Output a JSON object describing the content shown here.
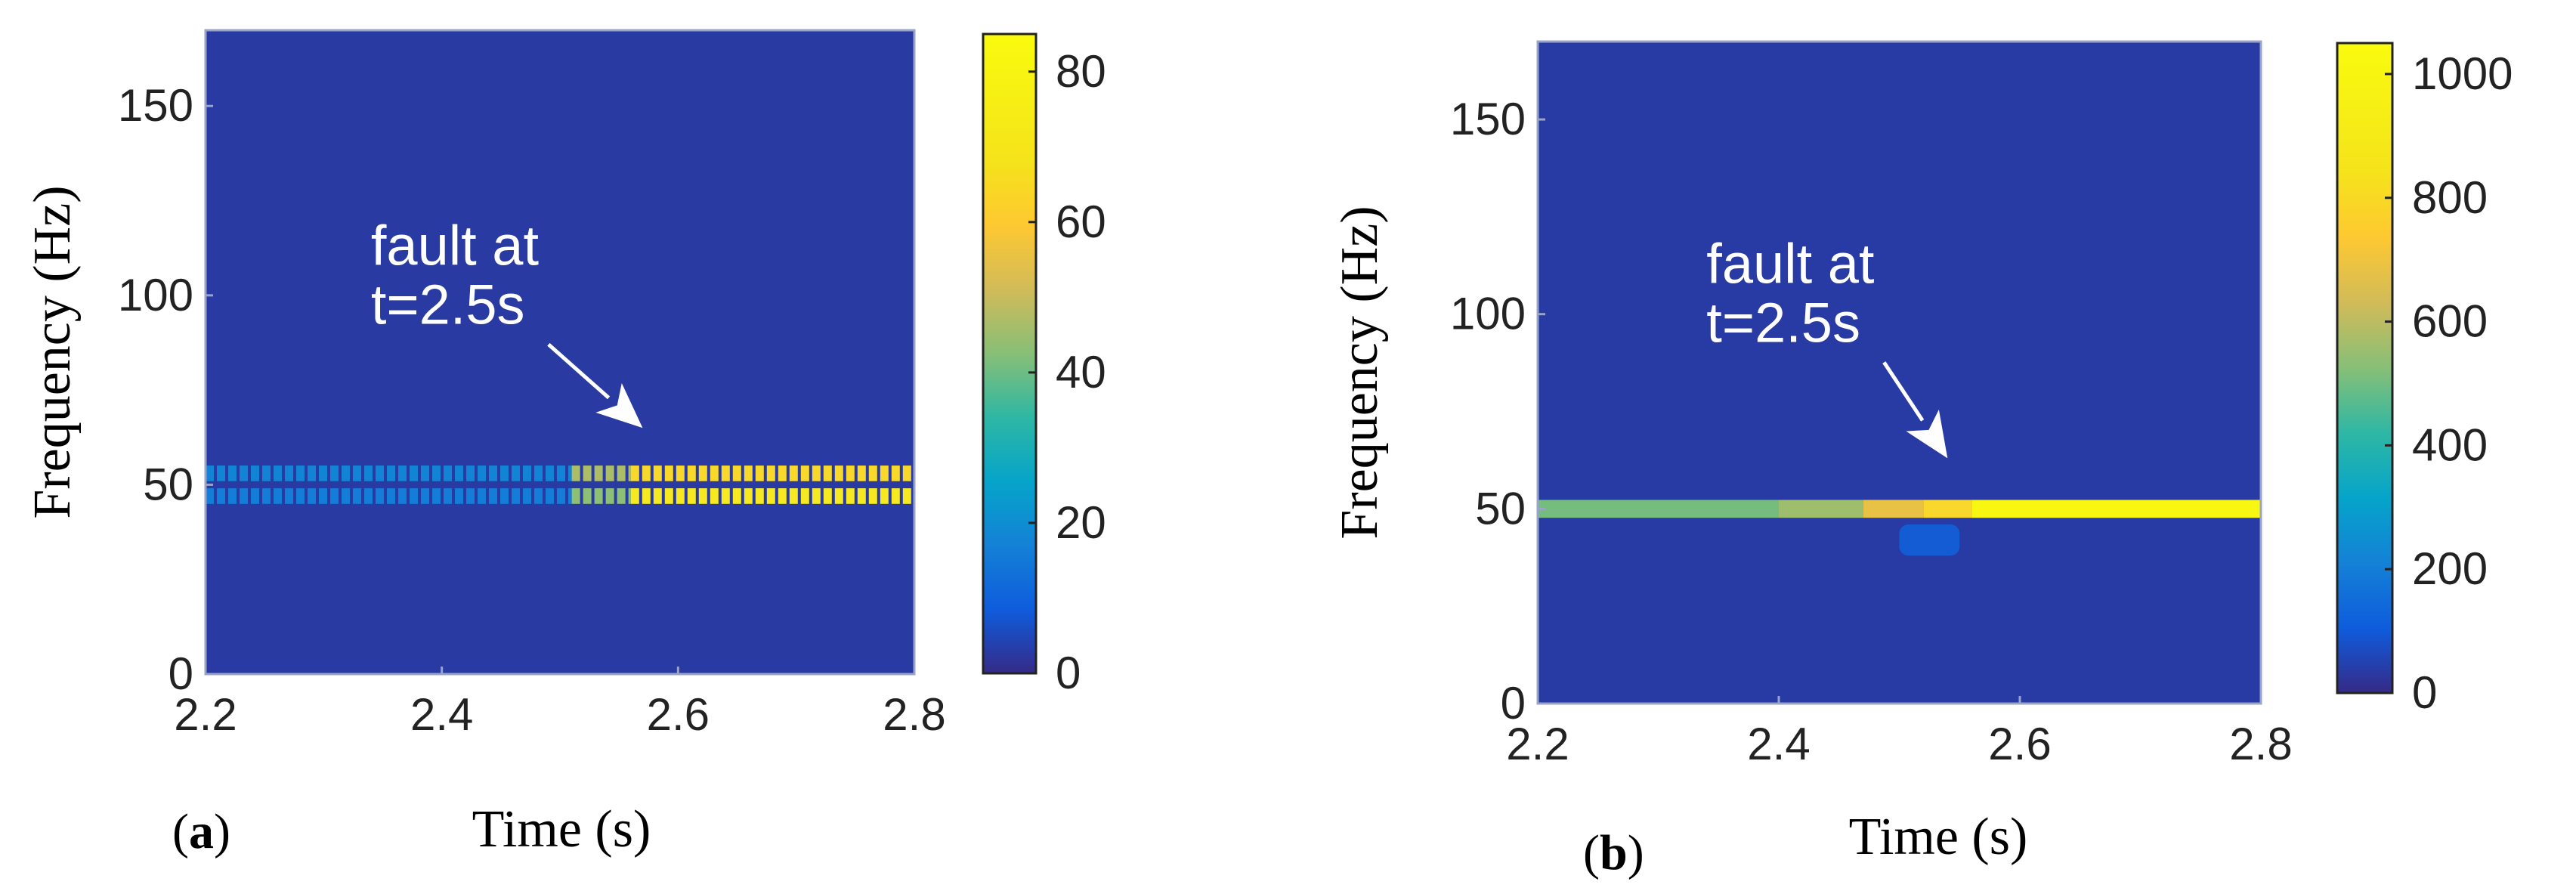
{
  "chart_data": [
    {
      "panel": "a",
      "panel_open": "(",
      "panel_letter": "a",
      "panel_close": ")",
      "type": "heatmap",
      "xlabel": "Time (s)",
      "ylabel": "Frequency (Hz)",
      "xlim": [
        2.2,
        2.8
      ],
      "ylim": [
        0,
        170
      ],
      "xticks": [
        2.2,
        2.4,
        2.6,
        2.8
      ],
      "xtick_labels": [
        "2.2",
        "2.4",
        "2.6",
        "2.8"
      ],
      "yticks": [
        0,
        50,
        100,
        150
      ],
      "ytick_labels": [
        "0",
        "50",
        "100",
        "150"
      ],
      "colorbar": {
        "min": 0,
        "max": 85,
        "ticks": [
          0,
          20,
          40,
          60,
          80
        ],
        "tick_labels": [
          "0",
          "20",
          "40",
          "60",
          "80"
        ],
        "colormap": "parula"
      },
      "background_value": 3,
      "bands": [
        {
          "t_start": 2.2,
          "t_end": 2.51,
          "freq": 53,
          "value": 20,
          "pattern": "dashed"
        },
        {
          "t_start": 2.2,
          "t_end": 2.51,
          "freq": 47,
          "value": 18,
          "pattern": "dashed"
        },
        {
          "t_start": 2.51,
          "t_end": 2.56,
          "freq": 53,
          "value": 52,
          "pattern": "dashed"
        },
        {
          "t_start": 2.51,
          "t_end": 2.56,
          "freq": 47,
          "value": 48,
          "pattern": "dashed"
        },
        {
          "t_start": 2.56,
          "t_end": 2.8,
          "freq": 53,
          "value": 72,
          "pattern": "dashed"
        },
        {
          "t_start": 2.56,
          "t_end": 2.8,
          "freq": 47,
          "value": 78,
          "pattern": "dashed"
        }
      ],
      "annotation": {
        "lines": [
          "fault at",
          "t=2.5s"
        ],
        "target_t": 2.57,
        "target_f": 65,
        "text_t": 2.34,
        "text_f": 108
      }
    },
    {
      "panel": "b",
      "panel_open": "(",
      "panel_letter": "b",
      "panel_close": ")",
      "type": "heatmap",
      "xlabel": "Time (s)",
      "ylabel": "Frequency (Hz)",
      "xlim": [
        2.2,
        2.8
      ],
      "ylim": [
        0,
        170
      ],
      "xticks": [
        2.2,
        2.4,
        2.6,
        2.8
      ],
      "xtick_labels": [
        "2.2",
        "2.4",
        "2.6",
        "2.8"
      ],
      "yticks": [
        0,
        50,
        100,
        150
      ],
      "ytick_labels": [
        "0",
        "50",
        "100",
        "150"
      ],
      "colorbar": {
        "min": 0,
        "max": 1050,
        "ticks": [
          0,
          200,
          400,
          600,
          800,
          1000
        ],
        "tick_labels": [
          "0",
          "200",
          "400",
          "600",
          "800",
          "1000"
        ],
        "colormap": "parula"
      },
      "background_value": 40,
      "bands": [
        {
          "t_start": 2.2,
          "t_end": 2.4,
          "freq": 50,
          "value": 560,
          "pattern": "solid"
        },
        {
          "t_start": 2.4,
          "t_end": 2.47,
          "freq": 50,
          "value": 620,
          "pattern": "solid"
        },
        {
          "t_start": 2.47,
          "t_end": 2.52,
          "freq": 50,
          "value": 760,
          "pattern": "solid"
        },
        {
          "t_start": 2.52,
          "t_end": 2.56,
          "freq": 50,
          "value": 880,
          "pattern": "solid"
        },
        {
          "t_start": 2.56,
          "t_end": 2.8,
          "freq": 50,
          "value": 1030,
          "pattern": "solid"
        }
      ],
      "blobs": [
        {
          "t_start": 2.5,
          "t_end": 2.55,
          "f_start": 38,
          "f_end": 46,
          "value": 140
        }
      ],
      "annotation": {
        "lines": [
          "fault at",
          "t=2.5s"
        ],
        "target_t": 2.54,
        "target_f": 63,
        "text_t": 2.34,
        "text_f": 108
      }
    }
  ]
}
